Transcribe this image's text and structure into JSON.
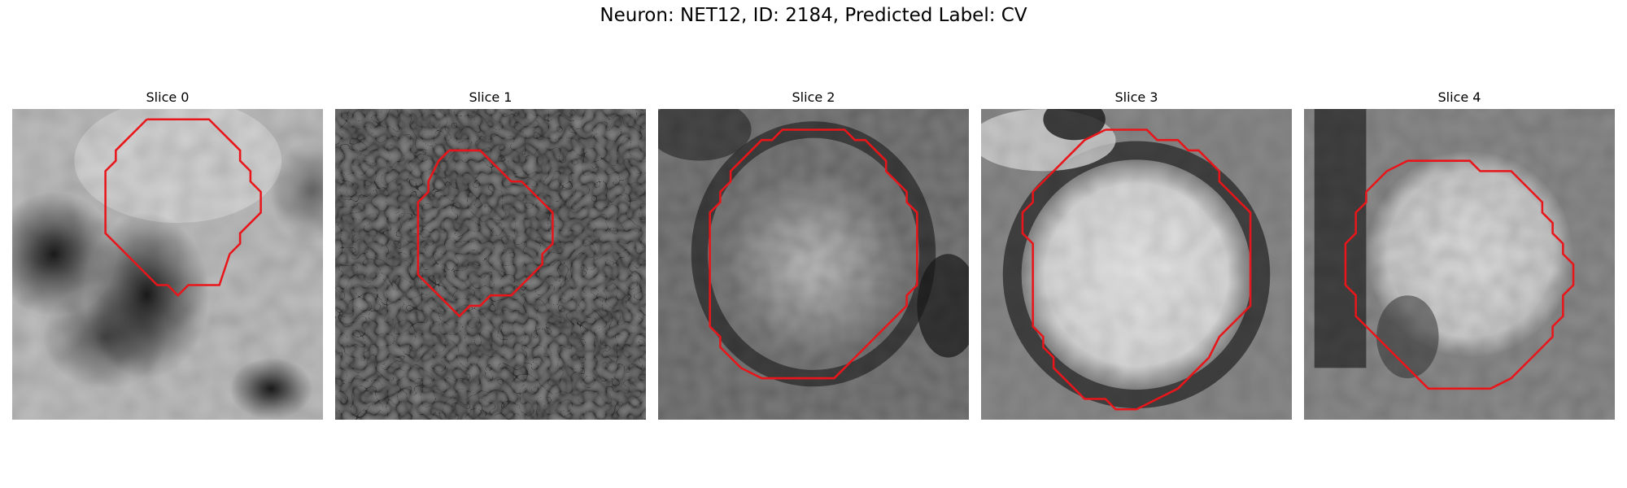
{
  "title": "Neuron: NET12, ID: 2184, Predicted Label: CV",
  "contour_color": "#e8161a",
  "panels": [
    {
      "label": "Slice 0"
    },
    {
      "label": "Slice 1"
    },
    {
      "label": "Slice 2"
    },
    {
      "label": "Slice 3"
    },
    {
      "label": "Slice 4"
    }
  ]
}
